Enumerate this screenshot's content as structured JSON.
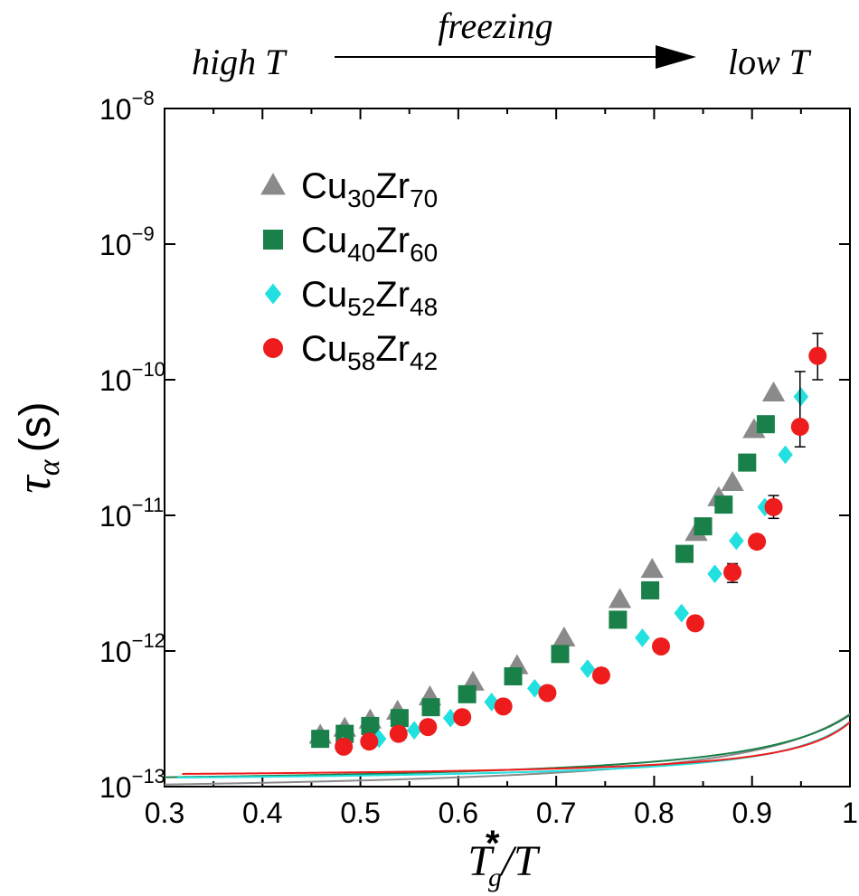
{
  "header": {
    "left_label": "high T",
    "arrow_label": "freezing",
    "right_label": "low T"
  },
  "chart_data": {
    "type": "scatter",
    "x_scale": "linear",
    "y_scale": "log",
    "xlim": [
      0.3,
      1.0
    ],
    "ylim": [
      1e-13,
      1e-08
    ],
    "x_ticks": [
      0.3,
      0.4,
      0.5,
      0.6,
      0.7,
      0.8,
      0.9,
      1.0
    ],
    "x_tick_labels": [
      "0.3",
      "0.4",
      "0.5",
      "0.6",
      "0.7",
      "0.8",
      "0.9",
      "1"
    ],
    "y_ticks": [
      1e-13,
      1e-12,
      1e-11,
      1e-10,
      1e-09,
      1e-08
    ],
    "y_tick_labels": [
      {
        "base": "10",
        "exp": "−13"
      },
      {
        "base": "10",
        "exp": "−12"
      },
      {
        "base": "10",
        "exp": "−11"
      },
      {
        "base": "10",
        "exp": "−10"
      },
      {
        "base": "10",
        "exp": "−9"
      },
      {
        "base": "10",
        "exp": "−8"
      }
    ],
    "xlabel": {
      "main": "T",
      "sub": "g",
      "sup": "*",
      "tail": "/T"
    },
    "ylabel": {
      "main": "τ",
      "sub": "α",
      "unit": "(s)"
    },
    "legend_position": "top-left",
    "series": [
      {
        "name": "Cu30Zr70",
        "label": {
          "el1": "Cu",
          "n1": "30",
          "el2": "Zr",
          "n2": "70"
        },
        "marker": "triangle",
        "color": "#8a8a8a",
        "x": [
          0.459,
          0.484,
          0.51,
          0.538,
          0.571,
          0.615,
          0.66,
          0.708,
          0.765,
          0.798,
          0.843,
          0.866,
          0.88,
          0.902,
          0.922
        ],
        "y": [
          2.4e-13,
          2.7e-13,
          3.1e-13,
          3.6e-13,
          4.6e-13,
          5.9e-13,
          7.8e-13,
          1.25e-12,
          2.4e-12,
          4e-12,
          7.5e-12,
          1.35e-11,
          1.75e-11,
          4.3e-11,
          8e-11
        ],
        "fit": {
          "A": 9.79e-14,
          "B": 0.1386,
          "T0": 0.8896
        }
      },
      {
        "name": "Cu40Zr60",
        "label": {
          "el1": "Cu",
          "n1": "40",
          "el2": "Zr",
          "n2": "60"
        },
        "marker": "square",
        "color": "#19804a",
        "x": [
          0.459,
          0.484,
          0.51,
          0.54,
          0.572,
          0.609,
          0.656,
          0.704,
          0.763,
          0.796,
          0.831,
          0.85,
          0.871,
          0.895,
          0.914
        ],
        "y": [
          2.25e-13,
          2.45e-13,
          2.8e-13,
          3.2e-13,
          3.85e-13,
          4.8e-13,
          6.5e-13,
          9.5e-13,
          1.7e-12,
          2.8e-12,
          5.2e-12,
          8.3e-12,
          1.2e-11,
          2.45e-11,
          4.7e-11
        ],
        "fit": {
          "A": 1.121e-13,
          "B": 0.1074,
          "T0": 0.9028
        }
      },
      {
        "name": "Cu52Zr48",
        "label": {
          "el1": "Cu",
          "n1": "52",
          "el2": "Zr",
          "n2": "48"
        },
        "marker": "diamond",
        "color": "#22e0e0",
        "x": [
          0.482,
          0.519,
          0.555,
          0.592,
          0.634,
          0.678,
          0.732,
          0.788,
          0.828,
          0.862,
          0.884,
          0.913,
          0.934,
          0.95
        ],
        "y": [
          2e-13,
          2.25e-13,
          2.6e-13,
          3.2e-13,
          4.2e-13,
          5.3e-13,
          7.4e-13,
          1.25e-12,
          1.9e-12,
          3.7e-12,
          6.5e-12,
          1.15e-11,
          2.8e-11,
          7.5e-11
        ],
        "fit": {
          "A": 1.129e-13,
          "B": 0.0711,
          "T0": 0.9275
        }
      },
      {
        "name": "Cu58Zr42",
        "label": {
          "el1": "Cu",
          "n1": "58",
          "el2": "Zr",
          "n2": "42"
        },
        "marker": "circle",
        "color": "#ee1c1c",
        "x": [
          0.483,
          0.509,
          0.539,
          0.569,
          0.604,
          0.646,
          0.691,
          0.746,
          0.807,
          0.842,
          0.88,
          0.905,
          0.922,
          0.949,
          0.967
        ],
        "y": [
          1.97e-13,
          2.15e-13,
          2.45e-13,
          2.75e-13,
          3.25e-13,
          3.9e-13,
          4.9e-13,
          6.6e-13,
          1.08e-12,
          1.6e-12,
          3.8e-12,
          6.4e-12,
          1.15e-11,
          4.5e-11,
          1.5e-10
        ],
        "error_x": [
          0.88,
          0.922,
          0.949,
          0.967
        ],
        "error_y_hi": [
          4.4e-12,
          1.4e-11,
          1.15e-10,
          2.2e-10
        ],
        "error_y_lo": [
          3.2e-12,
          9.5e-12,
          3.2e-11,
          1e-10
        ],
        "fit": {
          "A": 1.209e-13,
          "B": 0.0567,
          "T0": 0.9372
        }
      }
    ]
  }
}
